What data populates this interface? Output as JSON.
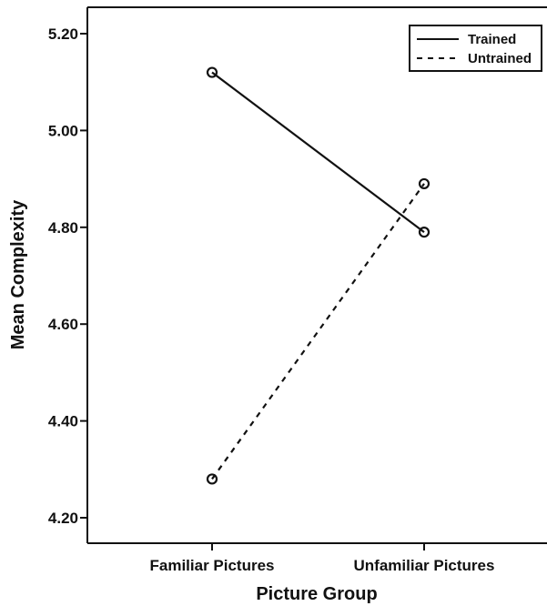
{
  "chart_data": {
    "type": "line",
    "xlabel": "Picture Group",
    "ylabel": "Mean Complexity",
    "categories": [
      "Familiar Pictures",
      "Unfamiliar Pictures"
    ],
    "ylim": [
      4.18,
      5.25
    ],
    "yticks": [
      "4.20",
      "4.40",
      "4.60",
      "4.80",
      "5.00",
      "5.20"
    ],
    "grid": false,
    "legend_position": "top-right",
    "series": [
      {
        "name": "Trained",
        "values": [
          5.12,
          4.79
        ],
        "line_style": "solid",
        "marker": "open-circle",
        "color": "#111111"
      },
      {
        "name": "Untrained",
        "values": [
          4.28,
          4.89
        ],
        "line_style": "dashed",
        "marker": "open-circle",
        "color": "#111111"
      }
    ]
  }
}
